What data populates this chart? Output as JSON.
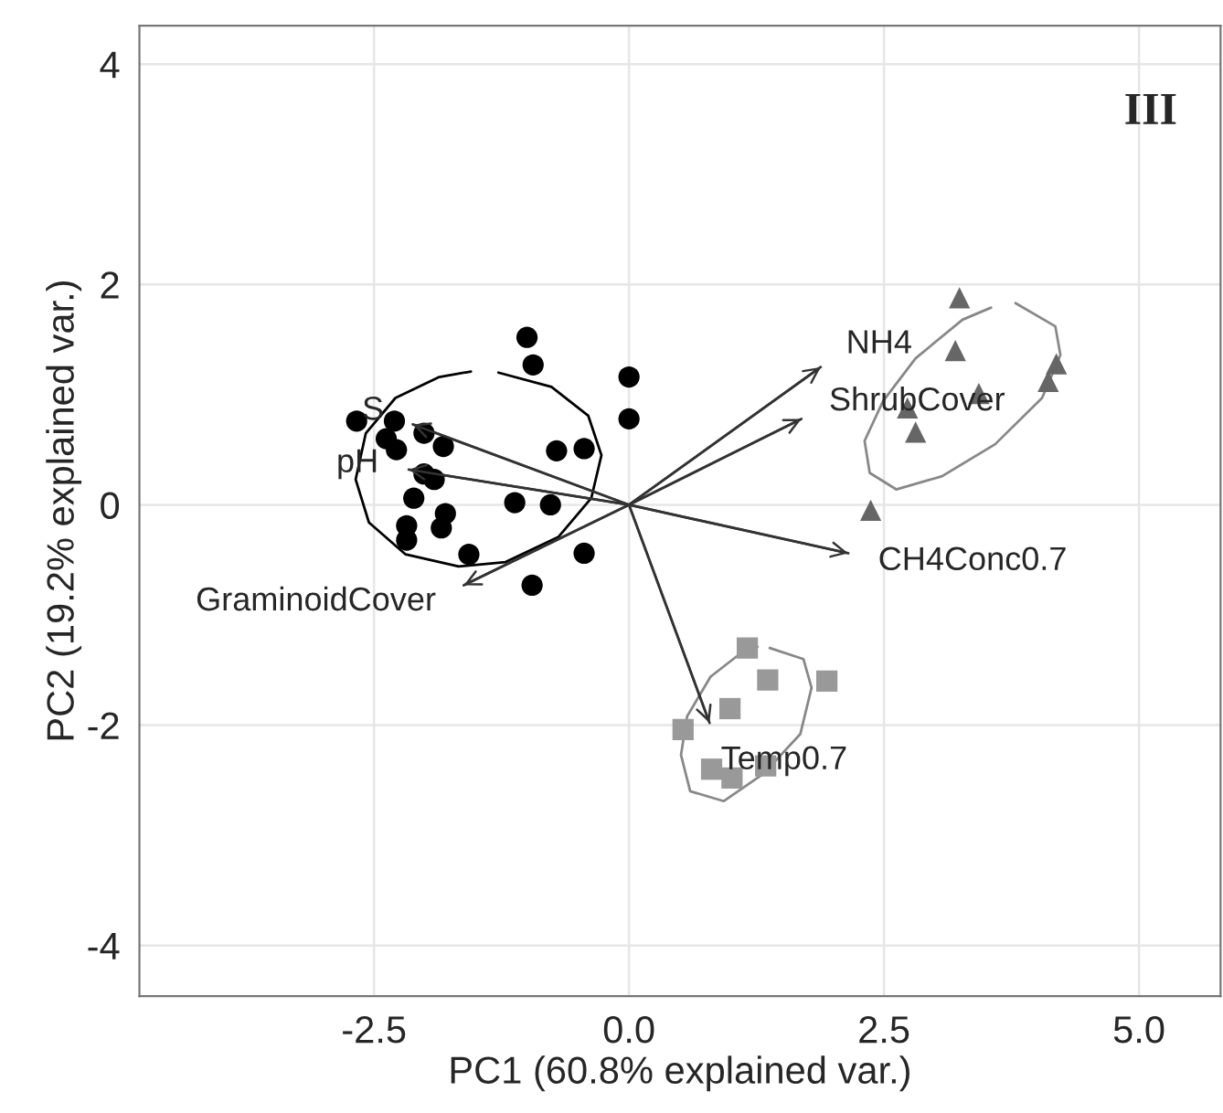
{
  "chart_data": {
    "type": "scatter",
    "xlabel": "PC1 (60.8% explained var.)",
    "ylabel": "PC2 (19.2% explained var.)",
    "xlim": [
      -4.8,
      5.8
    ],
    "ylim": [
      -4.46,
      4.35
    ],
    "xticks": [
      {
        "value": -2.5,
        "label": "-2.5"
      },
      {
        "value": 0,
        "label": "0.0"
      },
      {
        "value": 2.5,
        "label": "2.5"
      },
      {
        "value": 5,
        "label": "5.0"
      }
    ],
    "yticks": [
      -4,
      -2,
      0,
      2,
      4
    ],
    "grid": true,
    "legend": false,
    "series": [
      {
        "marker": "circle",
        "color": "#000000",
        "x": [
          -2.67,
          -2.3,
          -2.38,
          -2.28,
          -2.01,
          -1.82,
          -2.01,
          -1.91,
          -2.11,
          -1.8,
          -1.84,
          -2.18,
          -2.18,
          -1.57,
          -1.12,
          -0.77,
          -0.71,
          -0.44,
          -1.0,
          -0.94,
          0.0,
          0.0,
          -0.44,
          -0.95
        ],
        "values": [
          0.76,
          0.76,
          0.6,
          0.5,
          0.65,
          0.53,
          0.28,
          0.23,
          0.06,
          -0.08,
          -0.21,
          -0.19,
          -0.32,
          -0.45,
          0.02,
          0.0,
          0.49,
          0.51,
          1.52,
          1.27,
          1.16,
          0.78,
          -0.44,
          -0.73
        ]
      },
      {
        "marker": "triangle",
        "color": "#666666",
        "x": [
          3.24,
          3.2,
          3.43,
          2.73,
          2.81,
          4.19,
          4.11,
          2.37
        ],
        "values": [
          1.88,
          1.4,
          1.01,
          0.88,
          0.66,
          1.28,
          1.12,
          -0.05
        ]
      },
      {
        "marker": "square",
        "color": "#999999",
        "x": [
          1.16,
          1.36,
          1.94,
          0.99,
          0.53,
          0.81,
          1.01,
          1.34
        ],
        "values": [
          -1.3,
          -1.59,
          -1.6,
          -1.85,
          -2.04,
          -2.4,
          -2.48,
          -2.37
        ]
      },
      {
        "type": "line",
        "color": "#000000",
        "x": [
          -1.28,
          -0.76,
          -0.4,
          -0.27,
          -0.37,
          -0.69,
          -1.21,
          -1.67,
          -2.19,
          -2.55,
          -2.68,
          -2.58,
          -2.29,
          -1.86,
          -1.55
        ],
        "values": [
          1.2,
          1.07,
          0.81,
          0.45,
          0.06,
          -0.29,
          -0.52,
          -0.56,
          -0.45,
          -0.16,
          0.23,
          0.65,
          0.97,
          1.16,
          1.21
        ]
      },
      {
        "type": "line",
        "color": "#888888",
        "x": [
          3.79,
          4.18,
          4.23,
          4.05,
          3.59,
          3.07,
          2.62,
          2.36,
          2.31,
          2.49,
          2.81,
          3.27,
          3.55
        ],
        "values": [
          1.83,
          1.62,
          1.36,
          0.97,
          0.55,
          0.26,
          0.14,
          0.29,
          0.58,
          0.94,
          1.33,
          1.68,
          1.79
        ]
      },
      {
        "type": "line",
        "color": "#888888",
        "x": [
          1.38,
          1.71,
          1.79,
          1.68,
          1.32,
          0.93,
          0.6,
          0.51,
          0.57,
          0.8,
          1.12,
          1.26
        ],
        "values": [
          -1.3,
          -1.4,
          -1.66,
          -2.08,
          -2.44,
          -2.69,
          -2.6,
          -2.27,
          -1.92,
          -1.56,
          -1.33,
          -1.29
        ]
      },
      {
        "type": "line",
        "color": "#333333",
        "x": [
          0,
          -2.12
        ],
        "values": [
          0,
          0.73
        ]
      },
      {
        "type": "line",
        "color": "#333333",
        "x": [
          0,
          -2.16
        ],
        "values": [
          0,
          0.32
        ]
      },
      {
        "type": "line",
        "color": "#333333",
        "x": [
          0,
          -1.62
        ],
        "values": [
          0,
          -0.73
        ]
      },
      {
        "type": "line",
        "color": "#333333",
        "x": [
          0,
          1.88
        ],
        "values": [
          0,
          1.25
        ]
      },
      {
        "type": "line",
        "color": "#333333",
        "x": [
          0,
          1.69
        ],
        "values": [
          0,
          0.78
        ]
      },
      {
        "type": "line",
        "color": "#333333",
        "x": [
          0,
          2.15
        ],
        "values": [
          0,
          -0.44
        ]
      },
      {
        "type": "line",
        "color": "#333333",
        "x": [
          0,
          0.79
        ],
        "values": [
          0,
          -1.98
        ]
      }
    ],
    "annotations": [
      "III",
      {
        "text": "S",
        "x": -2.12,
        "y": 0.73
      },
      {
        "text": "pH",
        "x": -2.16,
        "y": 0.32
      },
      {
        "text": "GraminoidCover",
        "x": -1.62,
        "y": -0.73
      },
      {
        "text": "NH4",
        "x": 1.88,
        "y": 1.25
      },
      {
        "text": "ShrubCover",
        "x": 1.69,
        "y": 0.78
      },
      {
        "text": "CH4Conc0.7",
        "x": 2.15,
        "y": -0.44
      },
      {
        "text": "Temp0.7",
        "x": 0.79,
        "y": -1.98
      }
    ]
  }
}
